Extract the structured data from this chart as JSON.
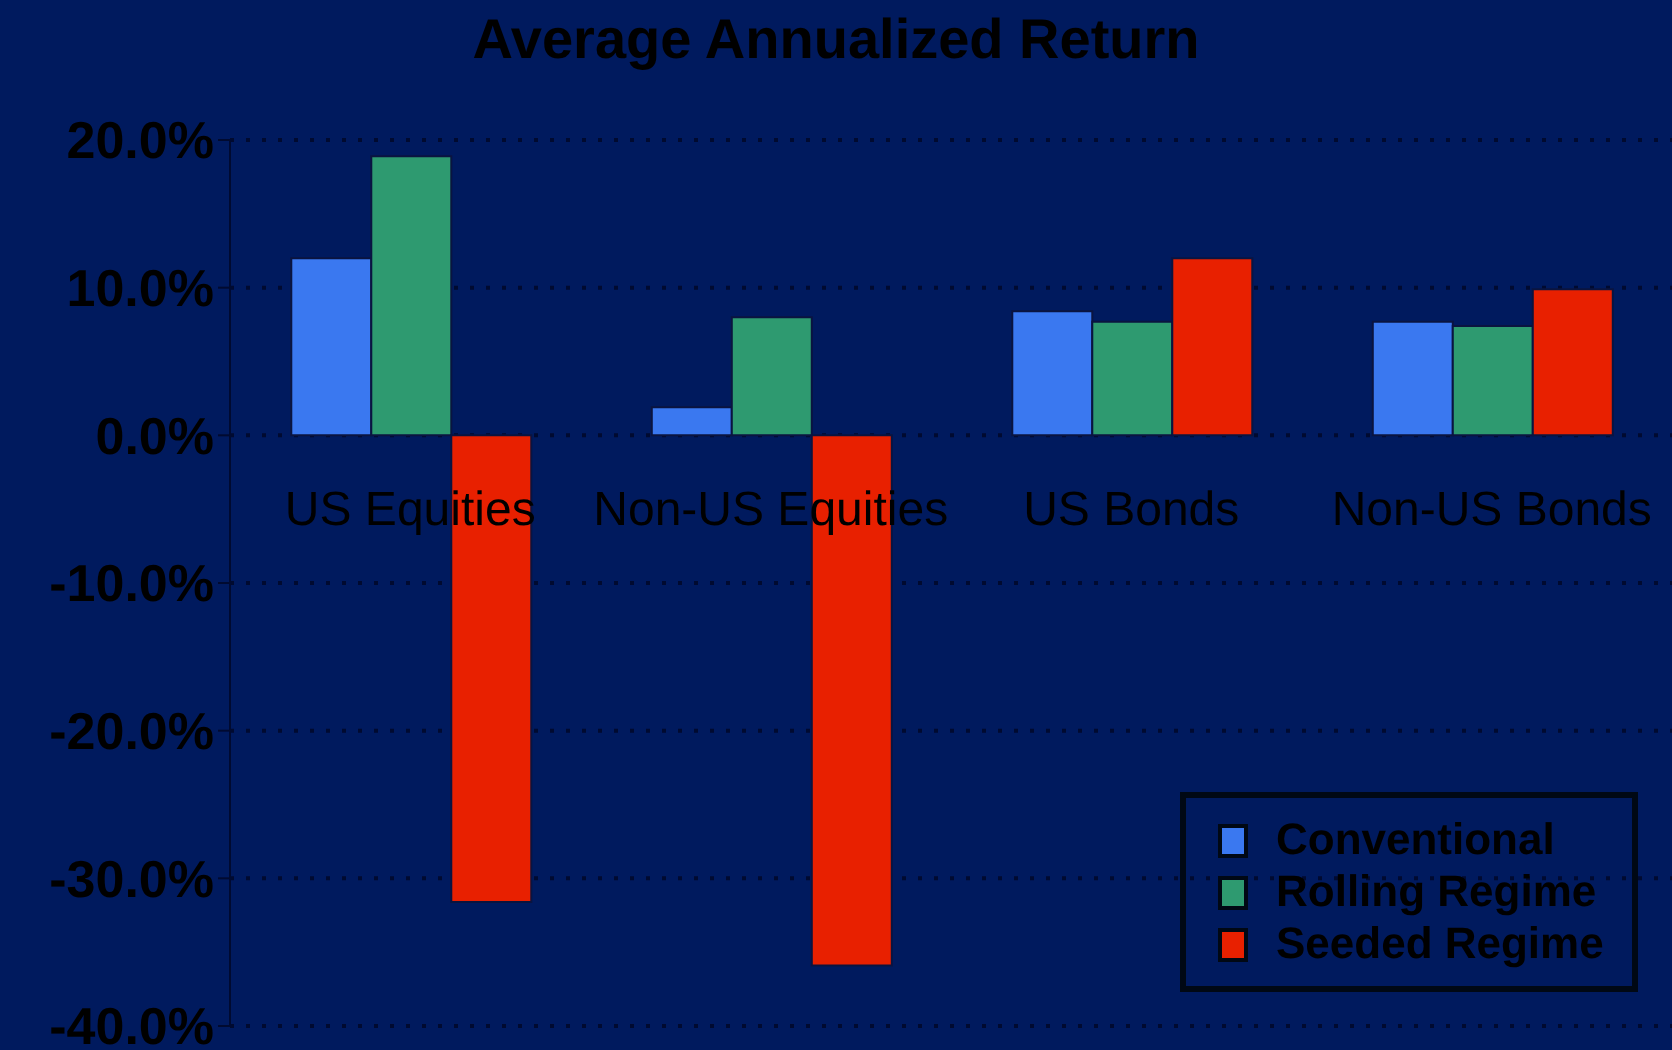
{
  "chart_data": {
    "type": "bar",
    "title": "Average Annualized Return",
    "categories": [
      "US Equities",
      "Non-US Equities",
      "US Bonds",
      "Non-US Bonds"
    ],
    "series": [
      {
        "name": "Conventional",
        "color": "#3a78f0",
        "values": [
          12.0,
          1.9,
          8.4,
          7.7
        ]
      },
      {
        "name": "Rolling Regime",
        "color": "#2e9a70",
        "values": [
          18.9,
          8.0,
          7.7,
          7.4
        ]
      },
      {
        "name": "Seeded Regime",
        "color": "#e82000",
        "values": [
          -31.6,
          -35.9,
          12.0,
          9.9
        ]
      }
    ],
    "ylim": [
      -40,
      20
    ],
    "yticks": [
      {
        "value": 20,
        "label": "20.0%"
      },
      {
        "value": 10,
        "label": "10.0%"
      },
      {
        "value": 0,
        "label": "0.0%"
      },
      {
        "value": -10,
        "label": "-10.0%"
      },
      {
        "value": -20,
        "label": "-20.0%"
      },
      {
        "value": -30,
        "label": "-30.0%"
      },
      {
        "value": -40,
        "label": "-40.0%"
      }
    ],
    "grid": "y",
    "legend": "bottom right"
  }
}
